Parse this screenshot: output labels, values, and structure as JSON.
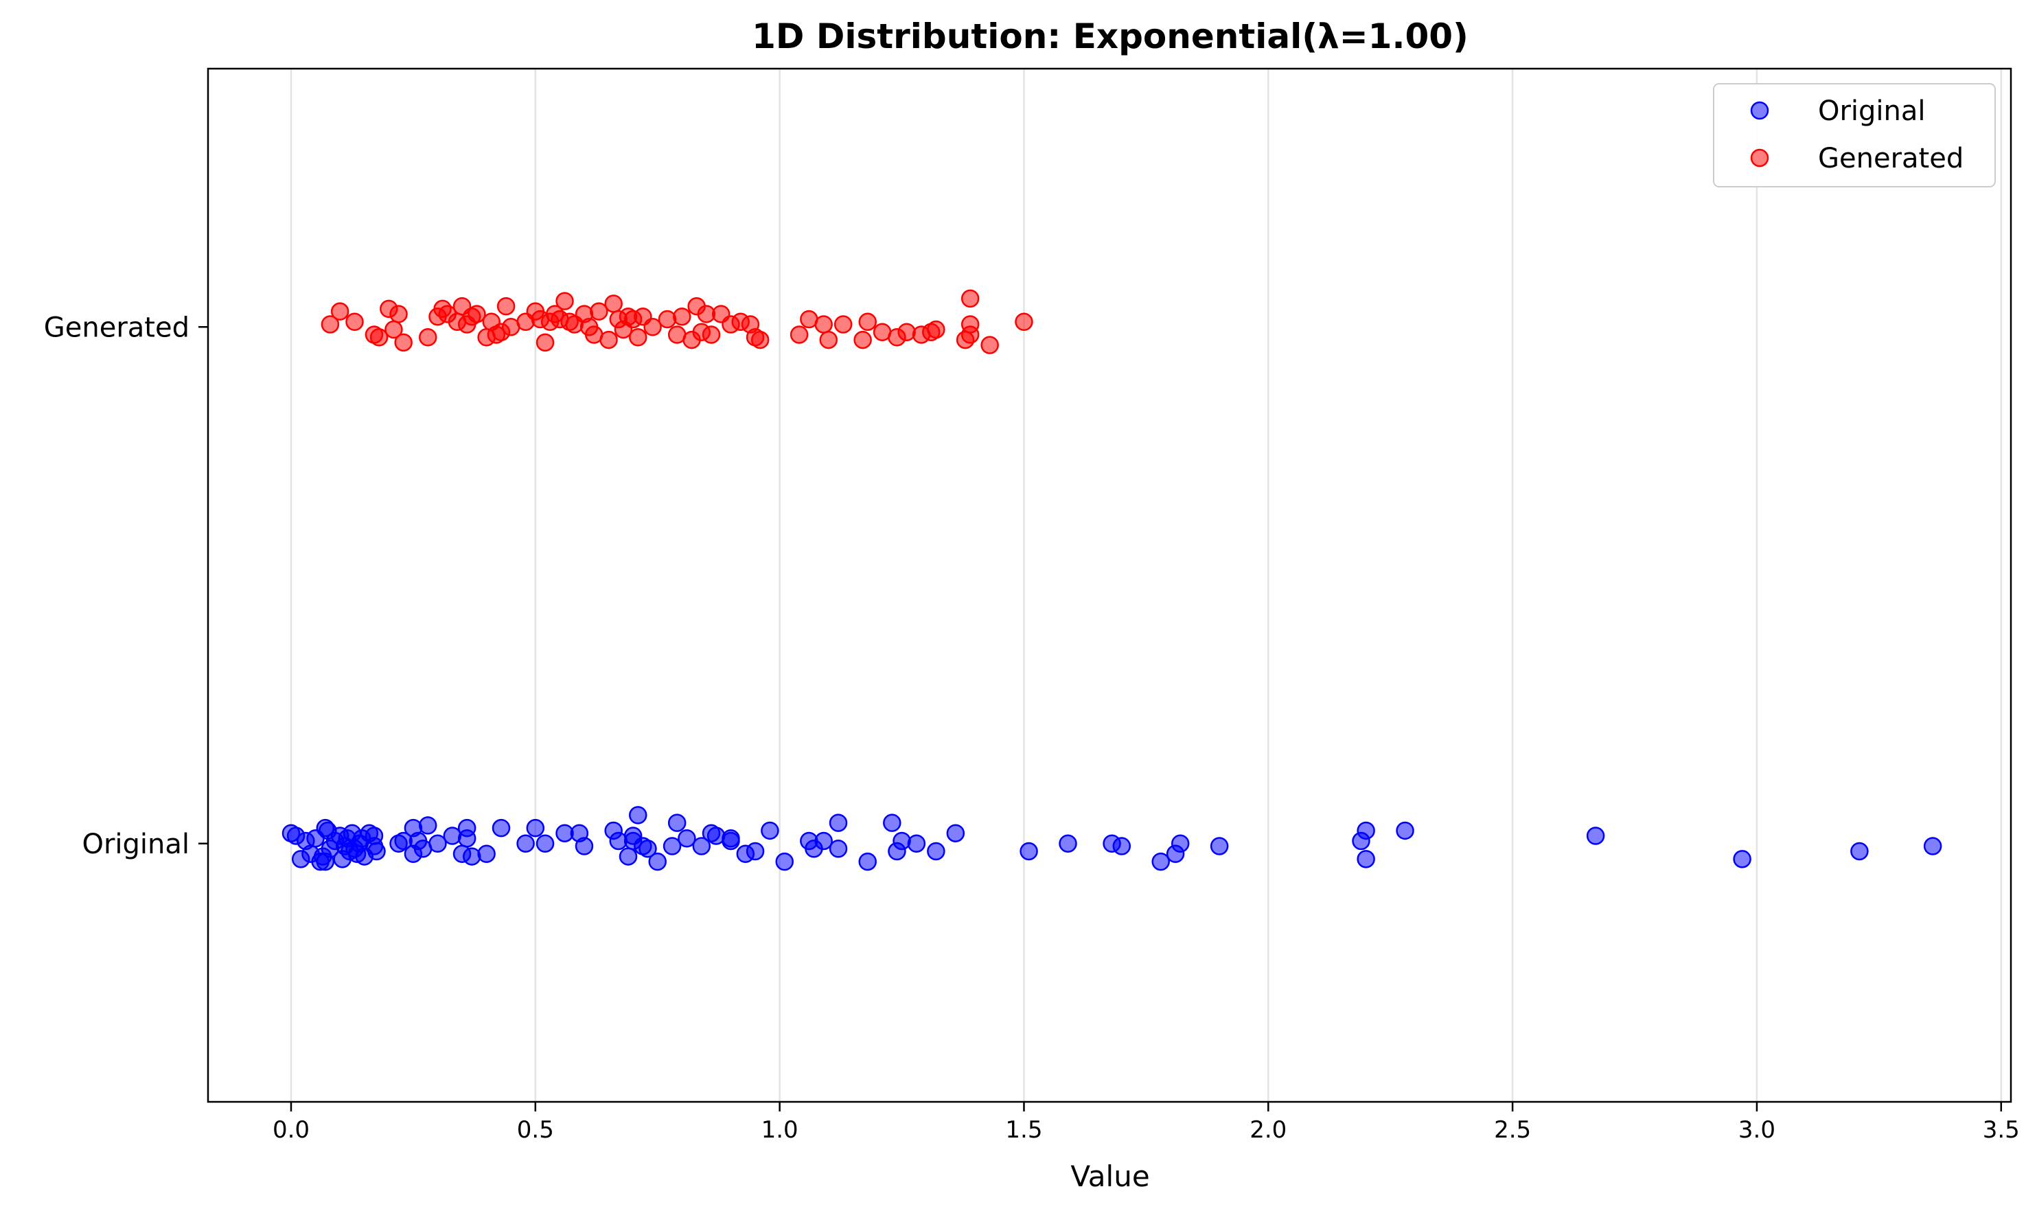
{
  "chart_data": {
    "type": "scatter",
    "title": "1D Distribution: Exponential(λ=1.00)",
    "xlabel": "Value",
    "ylabel": "",
    "xlim": [
      -0.17,
      3.52
    ],
    "x_ticks": [
      0.0,
      0.5,
      1.0,
      1.5,
      2.0,
      2.5,
      3.0,
      3.5
    ],
    "x_tick_labels": [
      "0.0",
      "0.5",
      "1.0",
      "1.5",
      "2.0",
      "2.5",
      "3.0",
      "3.5"
    ],
    "categories": [
      "Original",
      "Generated"
    ],
    "grid": "vertical",
    "legend": "top-right",
    "series": [
      {
        "name": "Original",
        "color": "#0000ff",
        "category": "Original",
        "x": [
          0.0,
          0.01,
          0.02,
          0.03,
          0.04,
          0.05,
          0.06,
          0.065,
          0.07,
          0.07,
          0.075,
          0.08,
          0.09,
          0.1,
          0.105,
          0.11,
          0.115,
          0.12,
          0.125,
          0.13,
          0.135,
          0.14,
          0.145,
          0.15,
          0.16,
          0.17,
          0.17,
          0.175,
          0.22,
          0.23,
          0.25,
          0.25,
          0.26,
          0.27,
          0.28,
          0.3,
          0.33,
          0.35,
          0.36,
          0.36,
          0.37,
          0.4,
          0.43,
          0.48,
          0.5,
          0.52,
          0.56,
          0.59,
          0.6,
          0.66,
          0.67,
          0.69,
          0.7,
          0.7,
          0.71,
          0.72,
          0.73,
          0.75,
          0.78,
          0.79,
          0.81,
          0.84,
          0.86,
          0.87,
          0.9,
          0.9,
          0.93,
          0.95,
          0.98,
          1.01,
          1.06,
          1.07,
          1.09,
          1.12,
          1.12,
          1.18,
          1.23,
          1.24,
          1.25,
          1.28,
          1.32,
          1.36,
          1.51,
          1.59,
          1.68,
          1.7,
          1.78,
          1.81,
          1.82,
          1.9,
          2.19,
          2.2,
          2.2,
          2.28,
          2.67,
          2.97,
          3.21,
          3.36
        ],
        "jitter": [
          0.02,
          0.015,
          -0.03,
          0.005,
          -0.02,
          0.01,
          -0.035,
          -0.025,
          -0.035,
          0.03,
          0.025,
          -0.01,
          0.005,
          0.015,
          -0.03,
          -0.005,
          0.01,
          -0.015,
          0.02,
          -0.01,
          -0.02,
          0.0,
          0.01,
          -0.025,
          0.02,
          -0.005,
          0.015,
          -0.015,
          0.0,
          0.005,
          -0.02,
          0.03,
          0.005,
          -0.01,
          0.035,
          0.0,
          0.015,
          -0.02,
          0.03,
          0.01,
          -0.025,
          -0.02,
          0.03,
          0.0,
          0.03,
          0.0,
          0.02,
          0.02,
          -0.005,
          0.025,
          0.005,
          -0.025,
          0.005,
          0.015,
          0.055,
          -0.005,
          -0.01,
          -0.035,
          -0.005,
          0.04,
          0.01,
          -0.005,
          0.02,
          0.015,
          0.01,
          0.005,
          -0.02,
          -0.015,
          0.025,
          -0.035,
          0.005,
          -0.01,
          0.005,
          -0.01,
          0.04,
          -0.035,
          0.04,
          -0.015,
          0.005,
          0.0,
          -0.015,
          0.02,
          -0.015,
          0.0,
          0.0,
          -0.005,
          -0.035,
          -0.02,
          0.0,
          -0.005,
          0.005,
          -0.03,
          0.025,
          0.025,
          0.015,
          -0.03,
          -0.015,
          -0.005
        ]
      },
      {
        "name": "Generated",
        "color": "#ff0000",
        "category": "Generated",
        "x": [
          0.08,
          0.1,
          0.13,
          0.17,
          0.18,
          0.2,
          0.21,
          0.22,
          0.23,
          0.28,
          0.3,
          0.31,
          0.32,
          0.34,
          0.35,
          0.36,
          0.37,
          0.38,
          0.4,
          0.41,
          0.42,
          0.43,
          0.44,
          0.45,
          0.48,
          0.5,
          0.51,
          0.52,
          0.53,
          0.54,
          0.55,
          0.56,
          0.57,
          0.58,
          0.6,
          0.61,
          0.62,
          0.63,
          0.65,
          0.66,
          0.67,
          0.68,
          0.69,
          0.7,
          0.71,
          0.72,
          0.74,
          0.77,
          0.79,
          0.8,
          0.82,
          0.83,
          0.84,
          0.85,
          0.86,
          0.88,
          0.9,
          0.92,
          0.94,
          0.95,
          0.96,
          1.04,
          1.06,
          1.09,
          1.1,
          1.13,
          1.17,
          1.18,
          1.21,
          1.24,
          1.26,
          1.29,
          1.31,
          1.32,
          1.38,
          1.39,
          1.39,
          1.39,
          1.43,
          1.5
        ],
        "jitter": [
          0.005,
          0.03,
          0.01,
          -0.015,
          -0.02,
          0.035,
          -0.005,
          0.025,
          -0.03,
          -0.02,
          0.02,
          0.035,
          0.025,
          0.01,
          0.04,
          0.005,
          0.02,
          0.025,
          -0.02,
          0.01,
          -0.015,
          -0.01,
          0.04,
          0.0,
          0.01,
          0.03,
          0.015,
          -0.03,
          0.01,
          0.025,
          0.015,
          0.05,
          0.01,
          0.005,
          0.025,
          0.0,
          -0.015,
          0.03,
          -0.025,
          0.045,
          0.015,
          -0.005,
          0.02,
          0.015,
          -0.02,
          0.02,
          0.0,
          0.015,
          -0.015,
          0.02,
          -0.025,
          0.04,
          -0.01,
          0.025,
          -0.015,
          0.025,
          0.005,
          0.01,
          0.005,
          -0.02,
          -0.025,
          -0.015,
          0.015,
          0.005,
          -0.025,
          0.005,
          -0.025,
          0.01,
          -0.01,
          -0.02,
          -0.01,
          -0.015,
          -0.01,
          -0.005,
          -0.025,
          0.055,
          -0.015,
          0.005,
          -0.035,
          0.01
        ]
      }
    ]
  }
}
